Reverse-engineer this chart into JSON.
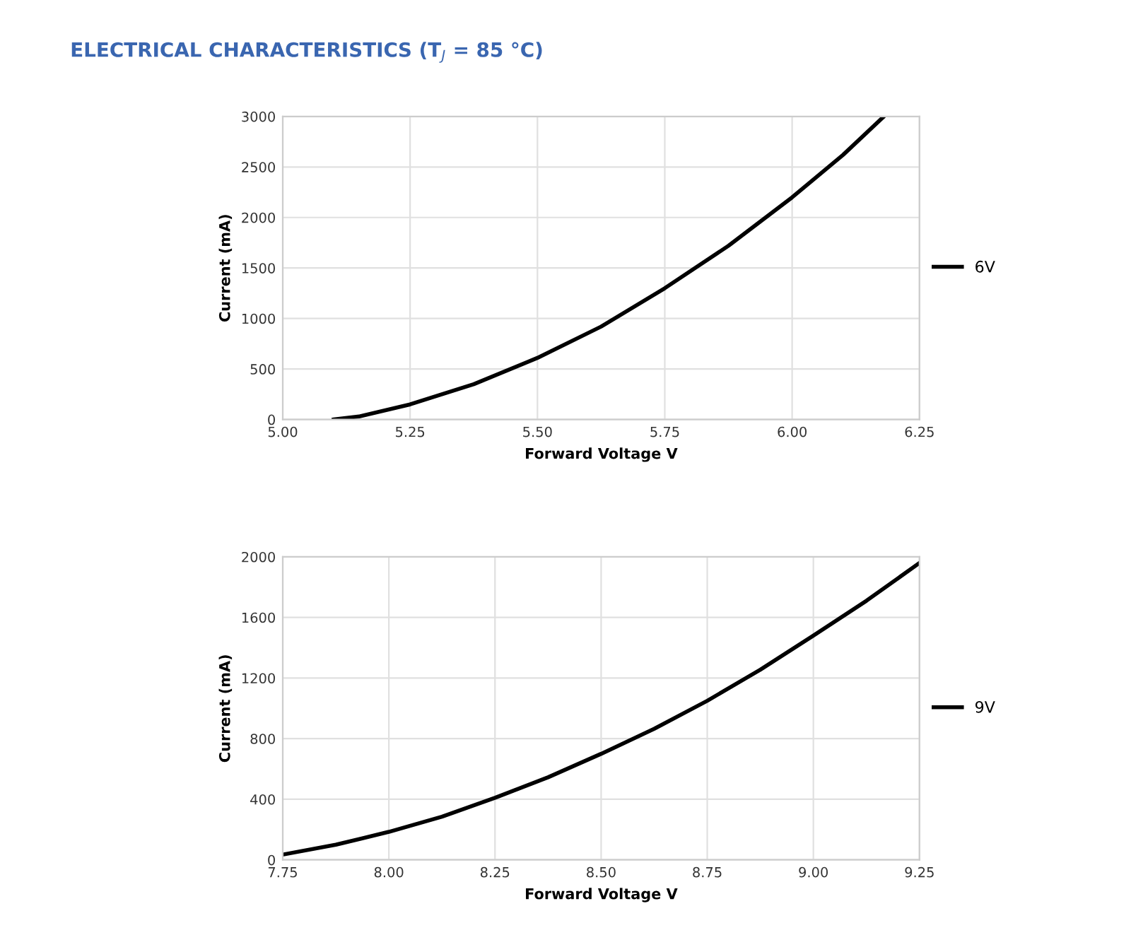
{
  "chart_data": [
    {
      "type": "line",
      "title": "ELECTRICAL CHARACTERISTICS (T$_{J}$ = 85 °C)",
      "xlabel": "Forward Voltage V",
      "ylabel": "Current (mA)",
      "xlim": [
        5.0,
        6.25
      ],
      "xticks": [
        {
          "value": 5.0,
          "label": "5.00"
        },
        5.25,
        {
          "value": 5.5,
          "label": "5.50"
        },
        5.75,
        {
          "value": 6.0,
          "label": "6.00"
        },
        6.25
      ],
      "ylim": [
        0,
        3000
      ],
      "yticks": [
        0,
        500,
        1000,
        1500,
        2000,
        2500,
        3000
      ],
      "grid": true,
      "legend": "right",
      "marker": "none",
      "line_style": "solid",
      "series": [
        {
          "name": "6V",
          "color": "#000000",
          "x": [
            5.1,
            5.15,
            5.25,
            5.375,
            5.5,
            5.625,
            5.75,
            5.875,
            6.0,
            6.1,
            6.18
          ],
          "values": [
            0,
            30,
            150,
            350,
            610,
            920,
            1300,
            1720,
            2200,
            2620,
            3000
          ]
        }
      ]
    },
    {
      "type": "line",
      "xlabel": "Forward Voltage V",
      "ylabel": "Current (mA)",
      "xlim": [
        7.75,
        9.25
      ],
      "xticks": [
        7.75,
        {
          "value": 8.0,
          "label": "8.00"
        },
        8.25,
        {
          "value": 8.5,
          "label": "8.50"
        },
        8.75,
        {
          "value": 9.0,
          "label": "9.00"
        },
        9.25
      ],
      "ylim": [
        0,
        2000
      ],
      "yticks": [
        0,
        400,
        800,
        1200,
        1600,
        2000
      ],
      "grid": true,
      "legend": "right",
      "marker": "none",
      "line_style": "solid",
      "series": [
        {
          "name": "9V",
          "color": "#000000",
          "x": [
            7.75,
            7.875,
            8.0,
            8.125,
            8.25,
            8.375,
            8.5,
            8.625,
            8.75,
            8.875,
            9.0,
            9.125,
            9.25
          ],
          "values": [
            35,
            100,
            185,
            285,
            410,
            545,
            700,
            865,
            1050,
            1255,
            1480,
            1710,
            1960
          ]
        }
      ]
    }
  ]
}
